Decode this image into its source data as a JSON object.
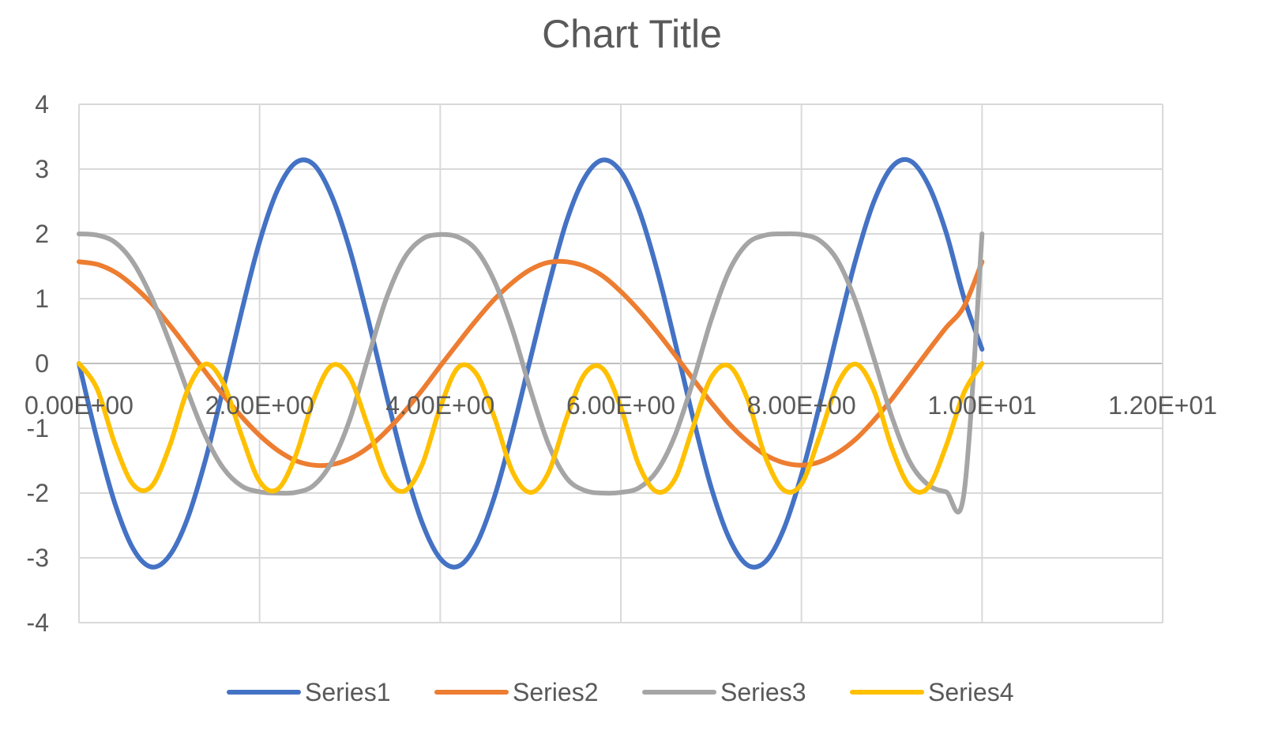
{
  "chart_data": {
    "type": "line",
    "title": "Chart Title",
    "xlabel": "",
    "ylabel": "",
    "xlim": [
      0,
      12
    ],
    "ylim": [
      -4,
      4
    ],
    "x_ticks": [
      {
        "value": 0,
        "label": "0.00E+00"
      },
      {
        "value": 2,
        "label": "2.00E+00"
      },
      {
        "value": 4,
        "label": "4.00E+00"
      },
      {
        "value": 6,
        "label": "6.00E+00"
      },
      {
        "value": 8,
        "label": "8.00E+00"
      },
      {
        "value": 10,
        "label": "1.00E+01"
      },
      {
        "value": 12,
        "label": "1.20E+01"
      }
    ],
    "y_ticks": [
      {
        "value": 4,
        "label": "4"
      },
      {
        "value": 3,
        "label": "3"
      },
      {
        "value": 2,
        "label": "2"
      },
      {
        "value": 1,
        "label": "1"
      },
      {
        "value": 0,
        "label": "0"
      },
      {
        "value": -1,
        "label": "-1"
      },
      {
        "value": -2,
        "label": "-2"
      },
      {
        "value": -3,
        "label": "-3"
      },
      {
        "value": -4,
        "label": "-4"
      }
    ],
    "grid": true,
    "legend": "bottom",
    "series": [
      {
        "name": "Series1",
        "color": "#4472C4",
        "x": [
          0,
          0.2,
          0.4,
          0.6,
          0.8,
          1,
          1.2,
          1.4,
          1.6,
          1.8,
          2,
          2.2,
          2.4,
          2.6,
          2.8,
          3,
          3.2,
          3.4,
          3.6,
          3.8,
          4,
          4.2,
          4.4,
          4.6,
          4.8,
          5,
          5.2,
          5.4,
          5.6,
          5.8,
          6,
          6.2,
          6.4,
          6.6,
          6.8,
          7,
          7.2,
          7.4,
          7.6,
          7.8,
          8,
          8.2,
          8.4,
          8.6,
          8.8,
          9,
          9.2,
          9.4,
          9.6,
          9.8,
          10
        ],
        "y": [
          0,
          -1.17,
          -2.17,
          -2.86,
          -3.14,
          -2.97,
          -2.4,
          -1.49,
          -0.37,
          0.8,
          1.88,
          2.68,
          3.1,
          3.07,
          2.58,
          1.75,
          0.69,
          -0.46,
          -1.56,
          -2.46,
          -3.01,
          -3.13,
          -2.79,
          -2.06,
          -1.05,
          0.08,
          1.2,
          2.2,
          2.87,
          3.14,
          2.96,
          2.37,
          1.45,
          0.33,
          -0.84,
          -1.91,
          -2.7,
          -3.11,
          -3.06,
          -2.57,
          -1.72,
          -0.65,
          0.5,
          1.6,
          2.49,
          3.03,
          3.13,
          2.77,
          2.03,
          1.01,
          0.22
        ]
      },
      {
        "name": "Series2",
        "color": "#ED7D31",
        "x": [
          0,
          0.2,
          0.4,
          0.6,
          0.8,
          1,
          1.2,
          1.4,
          1.6,
          1.8,
          2,
          2.2,
          2.4,
          2.6,
          2.8,
          3,
          3.2,
          3.4,
          3.6,
          3.8,
          4,
          4.2,
          4.4,
          4.6,
          4.8,
          5,
          5.2,
          5.4,
          5.6,
          5.8,
          6,
          6.2,
          6.4,
          6.6,
          6.8,
          7,
          7.2,
          7.4,
          7.6,
          7.8,
          8,
          8.2,
          8.4,
          8.6,
          8.8,
          9,
          9.2,
          9.4,
          9.6,
          9.8,
          10
        ],
        "y": [
          1.57,
          1.53,
          1.41,
          1.2,
          0.93,
          0.6,
          0.24,
          -0.13,
          -0.49,
          -0.82,
          -1.11,
          -1.34,
          -1.5,
          -1.57,
          -1.56,
          -1.47,
          -1.3,
          -1.05,
          -0.75,
          -0.41,
          -0.04,
          0.32,
          0.67,
          0.99,
          1.25,
          1.45,
          1.56,
          1.57,
          1.5,
          1.35,
          1.11,
          0.82,
          0.49,
          0.13,
          -0.24,
          -0.6,
          -0.93,
          -1.2,
          -1.41,
          -1.53,
          -1.57,
          -1.52,
          -1.38,
          -1.17,
          -0.88,
          -0.55,
          -0.18,
          0.19,
          0.55,
          0.88,
          1.57
        ]
      },
      {
        "name": "Series3",
        "color": "#A5A5A5",
        "x": [
          0,
          0.2,
          0.4,
          0.6,
          0.8,
          1,
          1.2,
          1.4,
          1.6,
          1.8,
          2,
          2.2,
          2.4,
          2.6,
          2.8,
          3,
          3.2,
          3.4,
          3.6,
          3.8,
          4,
          4.2,
          4.4,
          4.6,
          4.8,
          5,
          5.2,
          5.4,
          5.6,
          5.8,
          6,
          6.2,
          6.4,
          6.6,
          6.8,
          7,
          7.2,
          7.4,
          7.6,
          7.8,
          8,
          8.2,
          8.4,
          8.6,
          8.8,
          9,
          9.2,
          9.4,
          9.6,
          9.8,
          10
        ],
        "y": [
          2,
          1.98,
          1.87,
          1.56,
          1.03,
          0.34,
          -0.42,
          -1.12,
          -1.62,
          -1.89,
          -1.98,
          -2,
          -1.99,
          -1.88,
          -1.52,
          -0.86,
          0.08,
          0.99,
          1.62,
          1.92,
          1.99,
          1.95,
          1.75,
          1.27,
          0.52,
          -0.41,
          -1.25,
          -1.77,
          -1.96,
          -2,
          -1.99,
          -1.92,
          -1.66,
          -1.11,
          -0.27,
          0.67,
          1.43,
          1.85,
          1.98,
          2,
          1.99,
          1.9,
          1.59,
          0.96,
          0.09,
          -0.82,
          -1.52,
          -1.87,
          -1.98,
          -2,
          2
        ]
      },
      {
        "name": "Series4",
        "color": "#FFC000",
        "x": [
          0,
          0.2,
          0.4,
          0.6,
          0.8,
          1,
          1.2,
          1.4,
          1.6,
          1.8,
          2,
          2.2,
          2.4,
          2.6,
          2.8,
          3,
          3.2,
          3.4,
          3.6,
          3.8,
          4,
          4.2,
          4.4,
          4.6,
          4.8,
          5,
          5.2,
          5.4,
          5.6,
          5.8,
          6,
          6.2,
          6.4,
          6.6,
          6.8,
          7,
          7.2,
          7.4,
          7.6,
          7.8,
          8,
          8.2,
          8.4,
          8.6,
          8.8,
          9,
          9.2,
          9.4,
          9.6,
          9.8,
          10
        ],
        "y": [
          0,
          -0.39,
          -1.25,
          -1.87,
          -1.9,
          -1.29,
          -0.42,
          -0.01,
          -0.31,
          -1.11,
          -1.82,
          -1.94,
          -1.42,
          -0.55,
          -0.03,
          -0.22,
          -0.97,
          -1.75,
          -1.97,
          -1.56,
          -0.68,
          -0.06,
          -0.16,
          -0.83,
          -1.67,
          -1.99,
          -1.68,
          -0.84,
          -0.16,
          -0.08,
          -0.68,
          -1.57,
          -1.98,
          -1.78,
          -0.98,
          -0.22,
          -0.04,
          -0.54,
          -1.44,
          -1.95,
          -1.86,
          -1.13,
          -0.32,
          -0.01,
          -0.41,
          -1.3,
          -1.9,
          -1.92,
          -1.28,
          -0.45,
          0
        ]
      }
    ]
  }
}
